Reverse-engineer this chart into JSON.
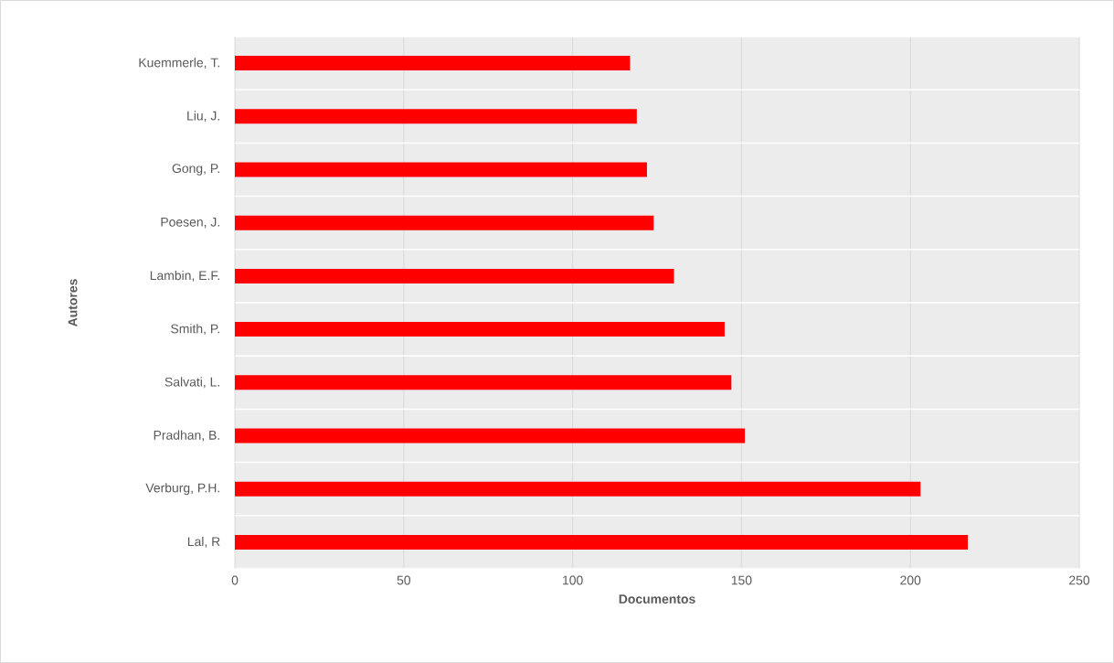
{
  "chart_data": {
    "type": "bar",
    "orientation": "horizontal",
    "categories": [
      "Kuemmerle, T.",
      "Liu, J.",
      "Gong, P.",
      "Poesen, J.",
      "Lambin, E.F.",
      "Smith, P.",
      "Salvati, L.",
      "Pradhan, B.",
      "Verburg, P.H.",
      "Lal, R"
    ],
    "values": [
      117,
      119,
      122,
      124,
      130,
      145,
      147,
      151,
      203,
      217
    ],
    "color": "#ff0000",
    "xlim": [
      0,
      250
    ],
    "xticks": [
      0,
      50,
      100,
      150,
      200,
      250
    ],
    "xlabel": "Documentos",
    "ylabel": "Autores",
    "grid": "x"
  }
}
